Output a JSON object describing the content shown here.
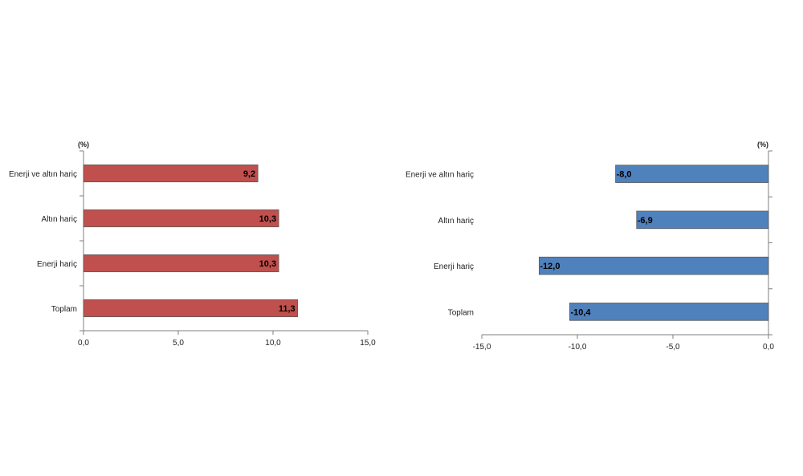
{
  "chart_data": [
    {
      "type": "bar",
      "orientation": "horizontal",
      "unit": "(%)",
      "categories": [
        "Enerji ve altın hariç",
        "Altın hariç",
        "Enerji hariç",
        "Toplam"
      ],
      "values": [
        9.2,
        10.3,
        10.3,
        11.3
      ],
      "data_labels": [
        "9,2",
        "10,3",
        "10,3",
        "11,3"
      ],
      "xlim": [
        0,
        15
      ],
      "xticks": [
        0,
        5,
        10,
        15
      ],
      "xtick_labels": [
        "0,0",
        "5,0",
        "10,0",
        "15,0"
      ],
      "bar_color": "#c0504d",
      "grid": false
    },
    {
      "type": "bar",
      "orientation": "horizontal",
      "unit": "(%)",
      "categories": [
        "Enerji ve altın hariç",
        "Altın hariç",
        "Enerji hariç",
        "Toplam"
      ],
      "values": [
        -8.0,
        -6.9,
        -12.0,
        -10.4
      ],
      "data_labels": [
        "-8,0",
        "-6,9",
        "-12,0",
        "-10,4"
      ],
      "xlim": [
        -15,
        0
      ],
      "xticks": [
        -15,
        -10,
        -5,
        0
      ],
      "xtick_labels": [
        "-15,0",
        "-10,0",
        "-5,0",
        "0,0"
      ],
      "bar_color": "#4f81bd",
      "grid": false
    }
  ]
}
